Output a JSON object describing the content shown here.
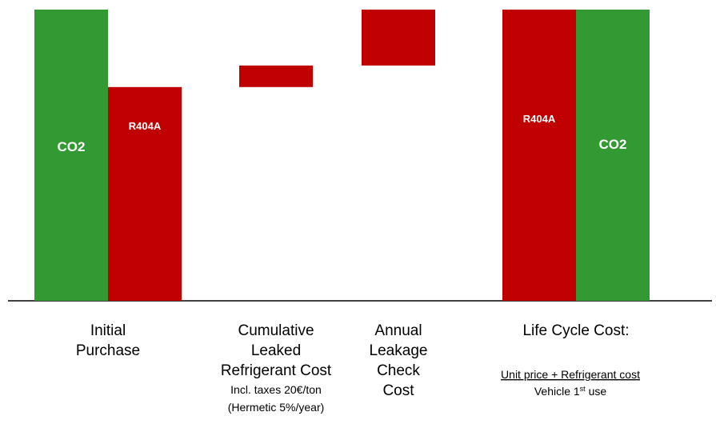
{
  "chart_data": {
    "type": "waterfall",
    "categories": [
      [
        "Initial",
        "Purchase"
      ],
      [
        "Cumulative",
        "Leaked",
        "Refrigerant Cost"
      ],
      [
        "Annual",
        "Leakage",
        "Check",
        "Cost"
      ],
      [
        "Life Cycle Cost:"
      ]
    ],
    "notes": {
      "leak": [
        "Incl. taxes 20€/ton",
        "(Hermetic 5%/year)"
      ],
      "lifecycle": [
        "Unit price + Refrigerant cost",
        [
          "Vehicle 1",
          "st",
          " use"
        ]
      ]
    },
    "series": [
      {
        "name": "CO2",
        "color": "#339933",
        "values": [
          100,
          null,
          null,
          100
        ]
      },
      {
        "name": "R404A",
        "color": "#c00000",
        "values": [
          73.4,
          7.4,
          19.2,
          100
        ]
      }
    ],
    "ylim": [
      0,
      100
    ]
  }
}
